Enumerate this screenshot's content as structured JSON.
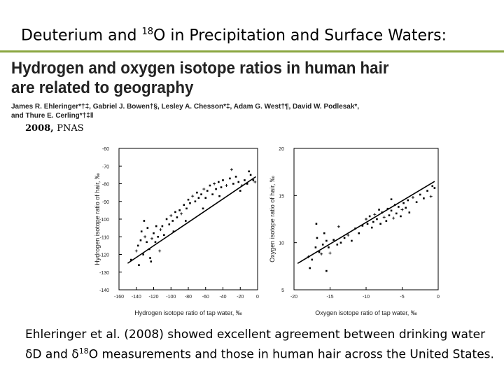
{
  "slide": {
    "title_pre": "Deuterium and ",
    "title_sup": "18",
    "title_post": "O in Precipitation and Surface Waters:"
  },
  "paper": {
    "title_line1": "Hydrogen and oxygen isotope ratios in human hair",
    "title_line2": "are related to geography",
    "authors_line1": "James R. Ehleringer*†‡, Gabriel J. Bowen†§, Lesley A. Chesson*‡, Adam G. West†¶, David W. Podlesak*,",
    "authors_line2": "and Thure E. Cerling*†‡‖",
    "citation_year": "2008, ",
    "citation_journal": "PNAS"
  },
  "caption": {
    "line1": "Ehleringer et al. (2008) showed excellent agreement between drinking water",
    "line2_pre": "δD and δ",
    "line2_sup": "18",
    "line2_post": "O measurements and those in human hair across the United States."
  },
  "chart_data": [
    {
      "type": "scatter",
      "title": "",
      "xlabel": "Hydrogen isotope ratio of tap water, ‰",
      "ylabel": "Hydrogen isotope ratio of hair, ‰",
      "xlim": [
        -160,
        0
      ],
      "ylim": [
        -140,
        -60
      ],
      "xticks": [
        "-160",
        "-140",
        "-120",
        "-100",
        "-80",
        "-60",
        "-40",
        "-20",
        "0"
      ],
      "yticks": [
        "-60",
        "-70",
        "-80",
        "-90",
        "-100",
        "-110",
        "-120",
        "-130",
        "-140"
      ],
      "trend": [
        [
          -150,
          -125
        ],
        [
          -2,
          -76
        ]
      ],
      "points": [
        [
          -140,
          -118
        ],
        [
          -138,
          -115
        ],
        [
          -135,
          -112
        ],
        [
          -134,
          -107
        ],
        [
          -132,
          -120
        ],
        [
          -130,
          -110
        ],
        [
          -128,
          -113
        ],
        [
          -127,
          -105
        ],
        [
          -125,
          -117
        ],
        [
          -124,
          -122
        ],
        [
          -122,
          -111
        ],
        [
          -120,
          -108
        ],
        [
          -118,
          -113
        ],
        [
          -117,
          -104
        ],
        [
          -115,
          -110
        ],
        [
          -112,
          -106
        ],
        [
          -110,
          -104
        ],
        [
          -108,
          -109
        ],
        [
          -105,
          -100
        ],
        [
          -102,
          -103
        ],
        [
          -100,
          -98
        ],
        [
          -98,
          -101
        ],
        [
          -95,
          -96
        ],
        [
          -93,
          -99
        ],
        [
          -90,
          -95
        ],
        [
          -88,
          -97
        ],
        [
          -85,
          -92
        ],
        [
          -82,
          -94
        ],
        [
          -80,
          -89
        ],
        [
          -78,
          -91
        ],
        [
          -75,
          -87
        ],
        [
          -72,
          -90
        ],
        [
          -70,
          -85
        ],
        [
          -68,
          -88
        ],
        [
          -65,
          -86
        ],
        [
          -62,
          -83
        ],
        [
          -60,
          -88
        ],
        [
          -58,
          -84
        ],
        [
          -55,
          -81
        ],
        [
          -52,
          -86
        ],
        [
          -50,
          -80
        ],
        [
          -48,
          -83
        ],
        [
          -45,
          -79
        ],
        [
          -42,
          -82
        ],
        [
          -40,
          -78
        ],
        [
          -36,
          -81
        ],
        [
          -32,
          -77
        ],
        [
          -28,
          -80
        ],
        [
          -25,
          -76
        ],
        [
          -22,
          -79
        ],
        [
          -18,
          -81
        ],
        [
          -15,
          -78
        ],
        [
          -12,
          -80
        ],
        [
          -8,
          -75
        ],
        [
          -5,
          -78
        ],
        [
          -3,
          -79
        ],
        [
          -146,
          -123
        ],
        [
          -137,
          -126
        ],
        [
          -131,
          -101
        ],
        [
          -123,
          -124
        ],
        [
          -113,
          -118
        ],
        [
          -97,
          -107
        ],
        [
          -83,
          -101
        ],
        [
          -63,
          -94
        ],
        [
          -44,
          -87
        ],
        [
          -30,
          -72
        ],
        [
          -20,
          -84
        ],
        [
          -10,
          -73
        ]
      ]
    },
    {
      "type": "scatter",
      "title": "",
      "xlabel": "Oxygen isotope ratio of tap water, ‰",
      "ylabel": "Oxygen isotope ratio of hair, ‰",
      "xlim": [
        -20,
        0
      ],
      "ylim": [
        5,
        20
      ],
      "xticks": [
        "-20",
        "-15",
        "-10",
        "-5",
        "0"
      ],
      "yticks": [
        "20",
        "15",
        "10",
        "5"
      ],
      "trend": [
        [
          -19.5,
          7.8
        ],
        [
          -0.5,
          16.5
        ]
      ],
      "points": [
        [
          -18,
          8.5
        ],
        [
          -17.5,
          8.2
        ],
        [
          -17,
          9.5
        ],
        [
          -16.8,
          10.5
        ],
        [
          -16.5,
          9.0
        ],
        [
          -16.2,
          8.8
        ],
        [
          -16,
          9.8
        ],
        [
          -15.8,
          11.0
        ],
        [
          -15.5,
          10.2
        ],
        [
          -15.2,
          9.5
        ],
        [
          -15,
          8.9
        ],
        [
          -14.5,
          10.3
        ],
        [
          -14,
          9.8
        ],
        [
          -13.5,
          10.0
        ],
        [
          -13,
          10.5
        ],
        [
          -12.5,
          10.8
        ],
        [
          -12,
          10.2
        ],
        [
          -11.5,
          11.5
        ],
        [
          -11,
          11.0
        ],
        [
          -10.5,
          11.8
        ],
        [
          -10,
          12.5
        ],
        [
          -9.8,
          12.0
        ],
        [
          -9.5,
          12.8
        ],
        [
          -9.2,
          11.6
        ],
        [
          -9,
          12.2
        ],
        [
          -8.8,
          13.0
        ],
        [
          -8.5,
          12.5
        ],
        [
          -8.2,
          13.5
        ],
        [
          -8,
          12.0
        ],
        [
          -7.8,
          13.2
        ],
        [
          -7.5,
          12.7
        ],
        [
          -7.2,
          12.3
        ],
        [
          -7,
          13.6
        ],
        [
          -6.8,
          12.9
        ],
        [
          -6.5,
          13.4
        ],
        [
          -6.2,
          12.6
        ],
        [
          -6,
          14.0
        ],
        [
          -5.8,
          13.1
        ],
        [
          -5.5,
          13.8
        ],
        [
          -5.2,
          12.8
        ],
        [
          -5,
          13.5
        ],
        [
          -4.8,
          14.2
        ],
        [
          -4.5,
          13.7
        ],
        [
          -4.2,
          14.5
        ],
        [
          -4,
          13.2
        ],
        [
          -3.5,
          14.8
        ],
        [
          -3,
          14.3
        ],
        [
          -2.5,
          15.1
        ],
        [
          -2,
          14.7
        ],
        [
          -1.5,
          15.5
        ],
        [
          -1,
          14.9
        ],
        [
          -0.5,
          15.8
        ],
        [
          -17.8,
          7.3
        ],
        [
          -16.9,
          12.0
        ],
        [
          -15.5,
          7.0
        ],
        [
          -13.8,
          11.7
        ],
        [
          -6.5,
          14.6
        ],
        [
          -0.8,
          16.0
        ]
      ]
    }
  ]
}
